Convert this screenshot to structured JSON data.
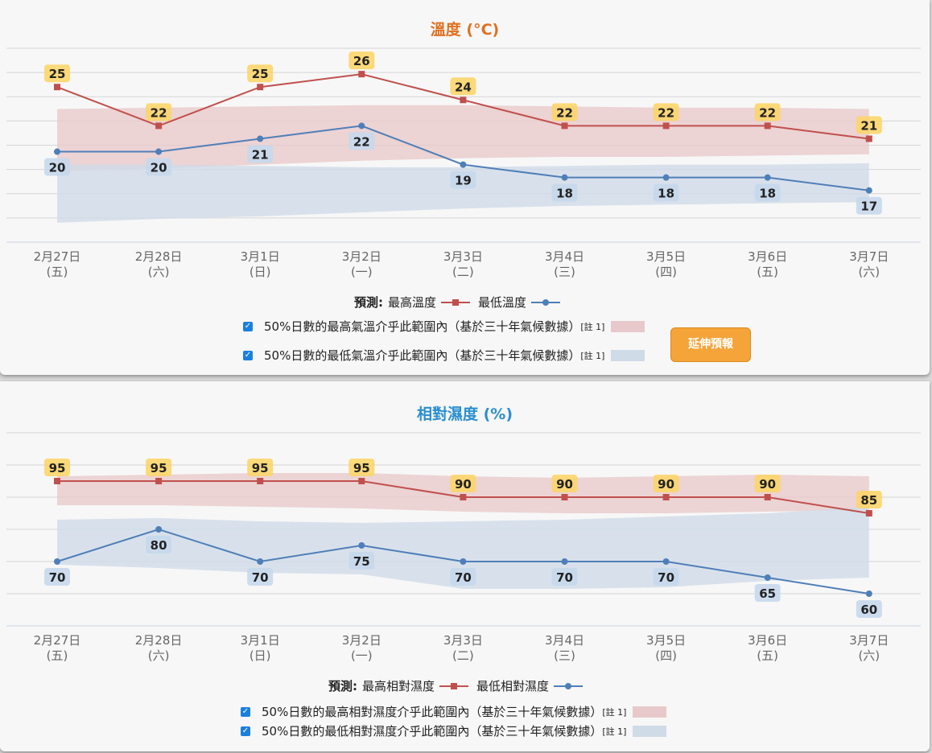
{
  "charts": [
    {
      "title": "溫度 (°C)",
      "legend_label": "預測:",
      "max_label": "最高溫度",
      "min_label": "最低溫度",
      "band_max_label": "50%日數的最高氣溫介乎此範圍內（基於三十年氣候數據）",
      "band_min_label": "50%日數的最低氣溫介乎此範圍內（基於三十年氣候數據）",
      "note": "[註 1]",
      "extend_button": "延伸預報"
    },
    {
      "title": "相對濕度 (%)",
      "legend_label": "預測:",
      "max_label": "最高相對濕度",
      "min_label": "最低相對濕度",
      "band_max_label": "50%日數的最高相對濕度介乎此範圍內（基於三十年氣候數據）",
      "band_min_label": "50%日數的最低相對濕度介乎此範圍內（基於三十年氣候數據）",
      "note": "[註 1]"
    }
  ],
  "colors": {
    "max_line": "#c0504d",
    "min_line": "#4f7fb8",
    "band_max": "#e8c9cb",
    "band_min": "#cfdbe7",
    "label_max_bg": "#fcd56a",
    "label_min_bg": "#c6d8ec",
    "checkbox": "#1a7fe0"
  },
  "chart_data": [
    {
      "type": "line",
      "title": "溫度 (°C)",
      "categories": [
        "2月27日",
        "2月28日",
        "3月1日",
        "3月2日",
        "3月3日",
        "3月4日",
        "3月5日",
        "3月6日",
        "3月7日"
      ],
      "weekdays": [
        "(五)",
        "(六)",
        "(日)",
        "(一)",
        "(二)",
        "(三)",
        "(四)",
        "(五)",
        "(六)"
      ],
      "ylim": [
        13,
        28
      ],
      "grid": true,
      "series": [
        {
          "name": "最高溫度",
          "values": [
            25,
            22,
            25,
            26,
            24,
            22,
            22,
            22,
            21
          ]
        },
        {
          "name": "最低溫度",
          "values": [
            20,
            20,
            21,
            22,
            19,
            18,
            18,
            18,
            17
          ]
        }
      ],
      "bands": [
        {
          "upper": [
            23.3,
            23.4,
            23.5,
            23.6,
            23.6,
            23.5,
            23.4,
            23.4,
            23.3
          ],
          "lower": [
            18.5,
            18.7,
            19.0,
            19.3,
            19.5,
            19.6,
            19.6,
            19.7,
            19.8
          ]
        },
        {
          "upper": [
            19.0,
            19.0,
            18.9,
            18.8,
            18.8,
            18.9,
            19.0,
            19.0,
            19.1
          ],
          "lower": [
            14.5,
            14.8,
            15.0,
            15.3,
            15.6,
            15.8,
            15.9,
            16.0,
            16.1
          ]
        }
      ]
    },
    {
      "type": "line",
      "title": "相對濕度 (%)",
      "categories": [
        "2月27日",
        "2月28日",
        "3月1日",
        "3月2日",
        "3月3日",
        "3月4日",
        "3月5日",
        "3月6日",
        "3月7日"
      ],
      "weekdays": [
        "(五)",
        "(六)",
        "(日)",
        "(一)",
        "(二)",
        "(三)",
        "(四)",
        "(五)",
        "(六)"
      ],
      "ylim": [
        50,
        110
      ],
      "grid": true,
      "series": [
        {
          "name": "最高相對濕度",
          "values": [
            95,
            95,
            95,
            95,
            90,
            90,
            90,
            90,
            85
          ]
        },
        {
          "name": "最低相對濕度",
          "values": [
            70,
            80,
            70,
            75,
            70,
            70,
            70,
            65,
            60
          ]
        }
      ],
      "bands": [
        {
          "upper": [
            96.5,
            97.0,
            97.5,
            97.5,
            96.5,
            96.0,
            96.5,
            97.0,
            96.5
          ],
          "lower": [
            87.5,
            87.5,
            87.0,
            86.5,
            85.5,
            85.0,
            85.0,
            85.5,
            86.0
          ]
        },
        {
          "upper": [
            83.0,
            83.5,
            82.5,
            82.0,
            82.5,
            83.0,
            84.0,
            85.0,
            87.0
          ],
          "lower": [
            69.0,
            68.0,
            66.5,
            66.0,
            61.5,
            61.5,
            62.0,
            64.0,
            65.0
          ]
        }
      ]
    }
  ]
}
